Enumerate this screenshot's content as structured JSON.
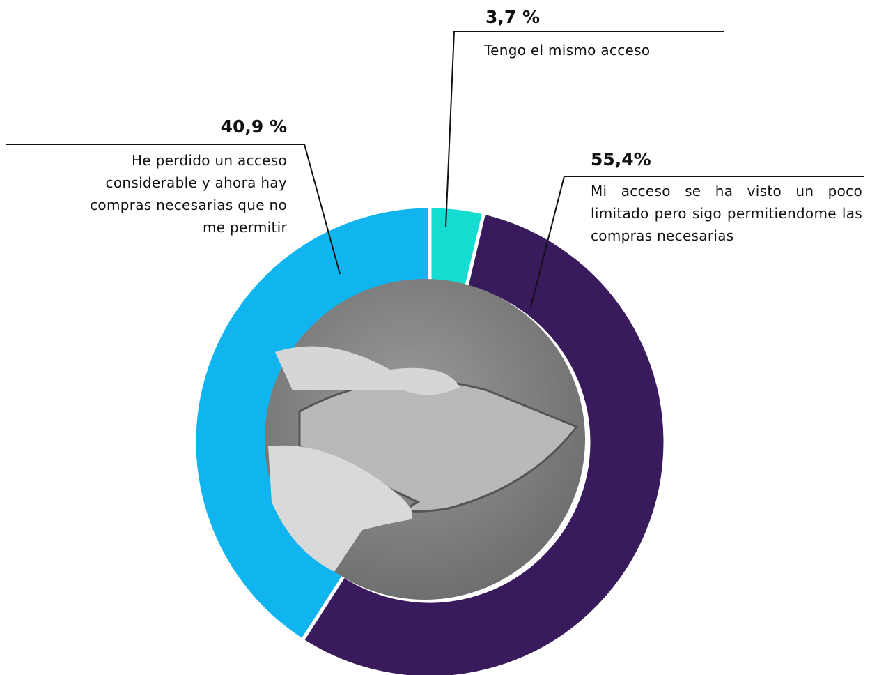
{
  "chart_data": {
    "type": "pie",
    "categories": [
      "Tengo el mismo acceso",
      "Mi acceso se ha visto un poco limitado pero sigo permitiendome las compras necesarias",
      "He perdido un acceso considerable y ahora hay compras necesarias que no me permitir"
    ],
    "values": [
      3.7,
      55.4,
      40.9
    ],
    "value_labels": [
      "3,7 %",
      "55,4%",
      "40,9 %"
    ],
    "colors": [
      "#14dcd0",
      "#391a5c",
      "#10b4ef"
    ]
  }
}
